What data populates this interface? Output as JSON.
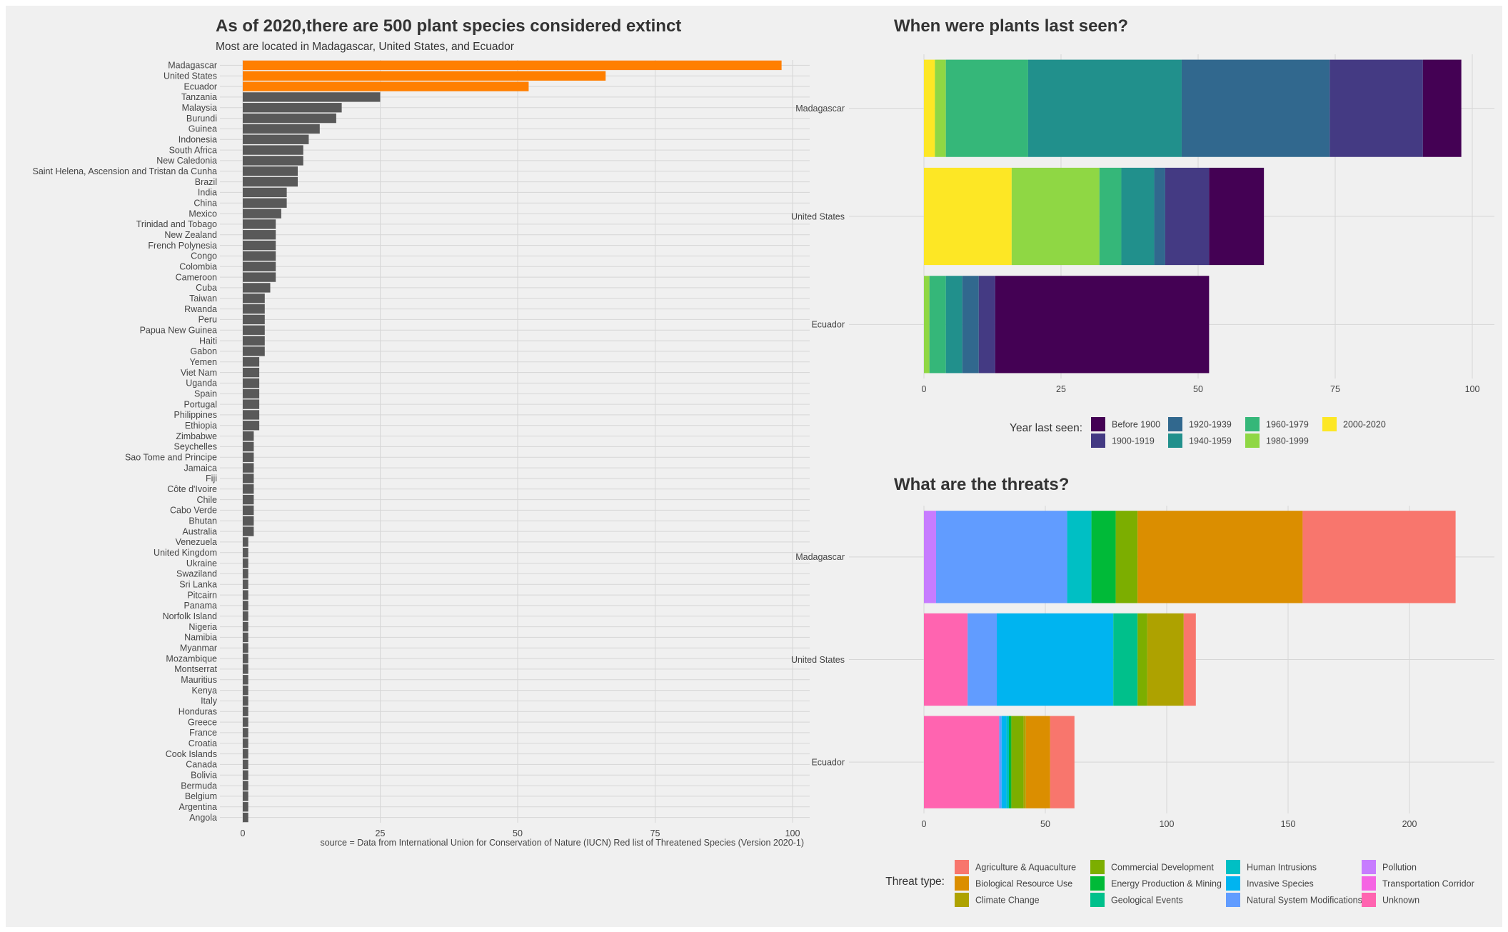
{
  "chart_data": [
    {
      "id": "country_counts",
      "type": "bar",
      "orientation": "horizontal",
      "title": "As of 2020,there are 500 plant species considered extinct",
      "subtitle": "Most are located in Madagascar, United States, and Ecuador",
      "caption": "source =  Data from International Union for Conservation of Nature (IUCN) Red list of Threatened Species (Version 2020-1)",
      "xlim": [
        0,
        103
      ],
      "xticks": [
        0,
        25,
        50,
        75,
        100
      ],
      "grid": true,
      "highlight_color": "#FF7F00",
      "default_color": "#595959",
      "categories": [
        "Madagascar",
        "United States",
        "Ecuador",
        "Tanzania",
        "Malaysia",
        "Burundi",
        "Guinea",
        "Indonesia",
        "South Africa",
        "New Caledonia",
        "Saint Helena, Ascension and Tristan da Cunha",
        "Brazil",
        "India",
        "China",
        "Mexico",
        "Trinidad and Tobago",
        "New Zealand",
        "French Polynesia",
        "Congo",
        "Colombia",
        "Cameroon",
        "Cuba",
        "Taiwan",
        "Rwanda",
        "Peru",
        "Papua New Guinea",
        "Haiti",
        "Gabon",
        "Yemen",
        "Viet Nam",
        "Uganda",
        "Spain",
        "Portugal",
        "Philippines",
        "Ethiopia",
        "Zimbabwe",
        "Seychelles",
        "Sao Tome and Principe",
        "Jamaica",
        "Fiji",
        "Côte d'Ivoire",
        "Chile",
        "Cabo Verde",
        "Bhutan",
        "Australia",
        "Venezuela",
        "United Kingdom",
        "Ukraine",
        "Swaziland",
        "Sri Lanka",
        "Pitcairn",
        "Panama",
        "Norfolk Island",
        "Nigeria",
        "Namibia",
        "Myanmar",
        "Mozambique",
        "Montserrat",
        "Mauritius",
        "Kenya",
        "Italy",
        "Honduras",
        "Greece",
        "France",
        "Croatia",
        "Cook Islands",
        "Canada",
        "Bolivia",
        "Bermuda",
        "Belgium",
        "Argentina",
        "Angola"
      ],
      "values": [
        98,
        66,
        52,
        25,
        18,
        17,
        14,
        12,
        11,
        11,
        10,
        10,
        8,
        8,
        7,
        6,
        6,
        6,
        6,
        6,
        6,
        5,
        4,
        4,
        4,
        4,
        4,
        4,
        3,
        3,
        3,
        3,
        3,
        3,
        3,
        2,
        2,
        2,
        2,
        2,
        2,
        2,
        2,
        2,
        2,
        1,
        1,
        1,
        1,
        1,
        1,
        1,
        1,
        1,
        1,
        1,
        1,
        1,
        1,
        1,
        1,
        1,
        1,
        1,
        1,
        1,
        1,
        1,
        1,
        1,
        1,
        1
      ],
      "highlighted": [
        "Madagascar",
        "United States",
        "Ecuador"
      ]
    },
    {
      "id": "last_seen",
      "type": "bar",
      "orientation": "horizontal",
      "stacked": true,
      "title": "When were plants last seen?",
      "xlim": [
        0,
        103
      ],
      "xticks": [
        0,
        25,
        50,
        75,
        100
      ],
      "grid": true,
      "legend_title": "Year last seen:",
      "legend_position": "bottom",
      "categories": [
        "Madagascar",
        "United States",
        "Ecuador"
      ],
      "series": [
        {
          "name": "Before 1900",
          "color": "#440154",
          "values": [
            7,
            10,
            39
          ]
        },
        {
          "name": "1900-1919",
          "color": "#443A83",
          "values": [
            17,
            8,
            3
          ]
        },
        {
          "name": "1920-1939",
          "color": "#31688E",
          "values": [
            27,
            2,
            3
          ]
        },
        {
          "name": "1940-1959",
          "color": "#21908C",
          "values": [
            28,
            6,
            3
          ]
        },
        {
          "name": "1960-1979",
          "color": "#35B779",
          "values": [
            15,
            4,
            3
          ]
        },
        {
          "name": "1980-1999",
          "color": "#8FD744",
          "values": [
            2,
            16,
            1
          ]
        },
        {
          "name": "2000-2020",
          "color": "#FDE725",
          "values": [
            2,
            16,
            0
          ]
        }
      ],
      "stack_order_left_to_right": [
        "2000-2020",
        "1980-1999",
        "1960-1979",
        "1940-1959",
        "1920-1939",
        "1900-1919",
        "Before 1900"
      ]
    },
    {
      "id": "threats",
      "type": "bar",
      "orientation": "horizontal",
      "stacked": true,
      "title": "What are the threats?",
      "xlim": [
        0,
        230
      ],
      "xticks": [
        0,
        50,
        100,
        150,
        200
      ],
      "grid": true,
      "legend_title": "Threat type:",
      "legend_position": "bottom",
      "categories": [
        "Madagascar",
        "United States",
        "Ecuador"
      ],
      "series": [
        {
          "name": "Agriculture & Aquaculture",
          "color": "#F8766D",
          "values": [
            63,
            5,
            10
          ]
        },
        {
          "name": "Biological Resource Use",
          "color": "#DB8E00",
          "values": [
            68,
            0,
            10
          ]
        },
        {
          "name": "Climate Change",
          "color": "#AEA200",
          "values": [
            0,
            15,
            1
          ]
        },
        {
          "name": "Commercial Development",
          "color": "#7CAE00",
          "values": [
            9,
            4,
            5
          ]
        },
        {
          "name": "Energy Production & Mining",
          "color": "#00BA38",
          "values": [
            10,
            0,
            1
          ]
        },
        {
          "name": "Geological Events",
          "color": "#00C08B",
          "values": [
            0,
            10,
            0
          ]
        },
        {
          "name": "Human Intrusions",
          "color": "#00BFC4",
          "values": [
            10,
            0,
            1
          ]
        },
        {
          "name": "Invasive Species",
          "color": "#00B4F0",
          "values": [
            0,
            48,
            2
          ]
        },
        {
          "name": "Natural System Modifications",
          "color": "#619CFF",
          "values": [
            54,
            12,
            1
          ]
        },
        {
          "name": "Pollution",
          "color": "#C77CFF",
          "values": [
            5,
            0,
            0
          ]
        },
        {
          "name": "Transportation Corridor",
          "color": "#F564E3",
          "values": [
            0,
            0,
            0
          ]
        },
        {
          "name": "Unknown",
          "color": "#FF64B0",
          "values": [
            0,
            18,
            31
          ]
        }
      ],
      "stack_order_left_to_right": [
        "Unknown",
        "Transportation Corridor",
        "Pollution",
        "Natural System Modifications",
        "Invasive Species",
        "Human Intrusions",
        "Geological Events",
        "Energy Production & Mining",
        "Commercial Development",
        "Climate Change",
        "Biological Resource Use",
        "Agriculture & Aquaculture"
      ]
    }
  ]
}
